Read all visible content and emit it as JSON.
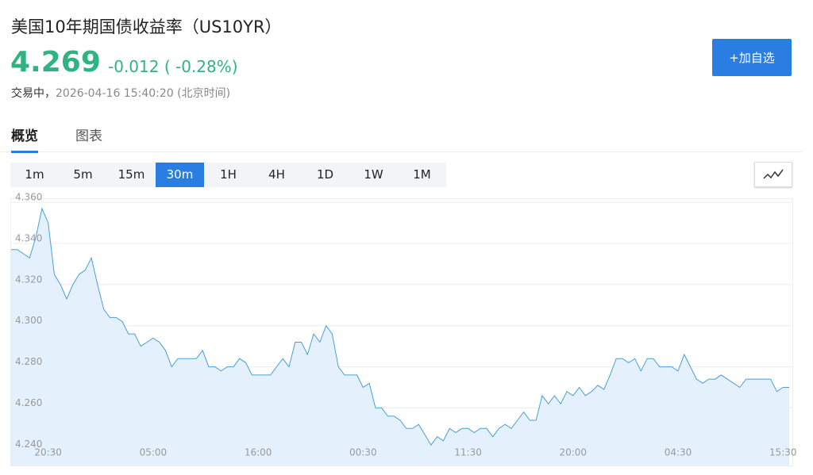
{
  "header": {
    "title": "美国10年期国债收益率（US10YR）",
    "price": "4.269",
    "change": "-0.012",
    "change_pct": "( -0.28%)",
    "status": "交易中，",
    "timestamp": "2026-04-16 15:40:20 (北京时间)",
    "watch_button": "+加自选"
  },
  "tabs": [
    "概览",
    "图表"
  ],
  "periods": [
    "1m",
    "5m",
    "15m",
    "30m",
    "1H",
    "4H",
    "1D",
    "1W",
    "1M"
  ],
  "active_period": "30m",
  "chart_data": {
    "type": "area",
    "color": "#4a9fd8",
    "fill": "#e4f1fd",
    "grid": true,
    "ylim": [
      4.232,
      4.362
    ],
    "yticks": [
      {
        "value": 4.24,
        "label": "4.240"
      },
      {
        "value": 4.26,
        "label": "4.260"
      },
      {
        "value": 4.28,
        "label": "4.280"
      },
      {
        "value": 4.3,
        "label": "4.300"
      },
      {
        "value": 4.32,
        "label": "4.320"
      },
      {
        "value": 4.34,
        "label": "4.340"
      },
      {
        "value": 4.36,
        "label": "4.360"
      }
    ],
    "categories": [
      null,
      null,
      null,
      null,
      null,
      null,
      "20:30",
      null,
      null,
      null,
      null,
      null,
      null,
      null,
      null,
      null,
      null,
      null,
      null,
      null,
      null,
      null,
      null,
      "05:00",
      null,
      null,
      null,
      null,
      null,
      null,
      null,
      null,
      null,
      null,
      null,
      null,
      null,
      null,
      null,
      null,
      "16:00",
      null,
      null,
      null,
      null,
      null,
      null,
      null,
      null,
      null,
      null,
      null,
      null,
      null,
      null,
      null,
      null,
      "00:30",
      null,
      null,
      null,
      null,
      null,
      null,
      null,
      null,
      null,
      null,
      null,
      null,
      null,
      null,
      null,
      null,
      "11:30",
      null,
      null,
      null,
      null,
      null,
      null,
      null,
      null,
      null,
      null,
      null,
      null,
      null,
      null,
      null,
      null,
      "20:00",
      null,
      null,
      null,
      null,
      null,
      null,
      null,
      null,
      null,
      null,
      null,
      null,
      null,
      null,
      null,
      null,
      "04:30",
      null,
      null,
      null,
      null,
      null,
      null,
      null,
      null,
      null,
      null,
      null,
      null,
      null,
      null,
      null,
      null,
      "15:30",
      null
    ],
    "series": [
      {
        "values": [
          4.337,
          4.337,
          4.335,
          4.333,
          4.343,
          4.357,
          4.35,
          4.325,
          4.32,
          4.313,
          4.32,
          4.325,
          4.327,
          4.333,
          4.32,
          4.308,
          4.304,
          4.304,
          4.302,
          4.296,
          4.296,
          4.29,
          4.292,
          4.294,
          4.292,
          4.288,
          4.28,
          4.284,
          4.284,
          4.284,
          4.284,
          4.288,
          4.28,
          4.28,
          4.278,
          4.28,
          4.28,
          4.284,
          4.282,
          4.276,
          4.276,
          4.276,
          4.276,
          4.28,
          4.284,
          4.28,
          4.292,
          4.292,
          4.286,
          4.296,
          4.292,
          4.3,
          4.296,
          4.28,
          4.276,
          4.276,
          4.276,
          4.27,
          4.272,
          4.26,
          4.26,
          4.256,
          4.256,
          4.254,
          4.25,
          4.25,
          4.252,
          4.247,
          4.242,
          4.246,
          4.244,
          4.25,
          4.248,
          4.25,
          4.25,
          4.248,
          4.25,
          4.25,
          4.246,
          4.25,
          4.252,
          4.25,
          4.254,
          4.258,
          4.254,
          4.254,
          4.266,
          4.262,
          4.266,
          4.262,
          4.268,
          4.266,
          4.27,
          4.266,
          4.268,
          4.271,
          4.269,
          4.276,
          4.284,
          4.284,
          4.282,
          4.284,
          4.278,
          4.284,
          4.284,
          4.28,
          4.28,
          4.28,
          4.278,
          4.286,
          4.28,
          4.274,
          4.272,
          4.274,
          4.274,
          4.276,
          4.274,
          4.272,
          4.27,
          4.274,
          4.274,
          4.274,
          4.274,
          4.274,
          4.268,
          4.27,
          4.27
        ]
      }
    ]
  }
}
